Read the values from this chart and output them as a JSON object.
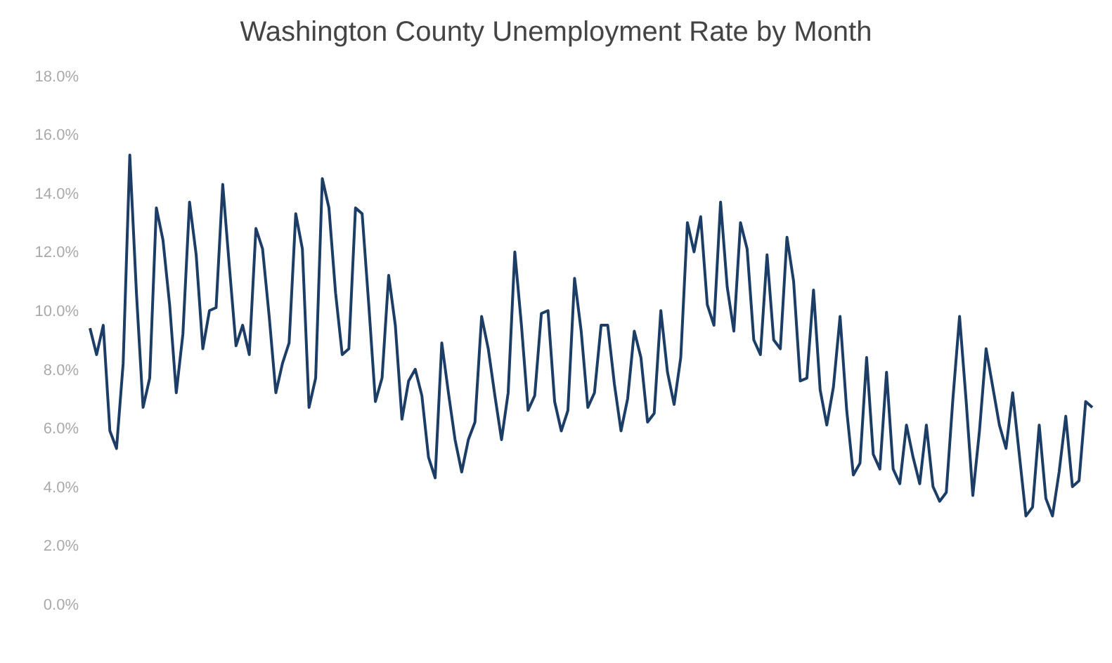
{
  "chart_data": {
    "type": "line",
    "title": "Washington County Unemployment Rate by Month",
    "categories": [
      null,
      null,
      null,
      null,
      null,
      null,
      null,
      null,
      null,
      null,
      null,
      null,
      null,
      null,
      null,
      null,
      null,
      null,
      null,
      null,
      null,
      null,
      null,
      null,
      null,
      null,
      null,
      null,
      null,
      null,
      null,
      null,
      null,
      null,
      null,
      null,
      null,
      null,
      null,
      null,
      null,
      null,
      null,
      null,
      null,
      null,
      null,
      null,
      null,
      null,
      null,
      null,
      null,
      null,
      null,
      null,
      null,
      null,
      null,
      null,
      null,
      null,
      null,
      null,
      null,
      null,
      null,
      null,
      null,
      null,
      null,
      null,
      null,
      null,
      null,
      null,
      null,
      null,
      null,
      null,
      null,
      null,
      null,
      null,
      null,
      null,
      null,
      null,
      null,
      null,
      null,
      null,
      null,
      null,
      null,
      null,
      null,
      null,
      null,
      null,
      null,
      null,
      null,
      null,
      null,
      null,
      null,
      null,
      null,
      null,
      null,
      null,
      null,
      null,
      null,
      null,
      null,
      null,
      null,
      null,
      null,
      null,
      null,
      null,
      null,
      null,
      null,
      null,
      null,
      null,
      null,
      null,
      null,
      null,
      null,
      null,
      null,
      null,
      null,
      null,
      null,
      null,
      null,
      null,
      null,
      null,
      null,
      null,
      null,
      null,
      null,
      null
    ],
    "series": [
      {
        "color": "#1b3d66",
        "values": [
          9.4,
          8.5,
          9.5,
          5.9,
          5.3,
          8.2,
          15.3,
          10.6,
          6.7,
          7.7,
          13.5,
          12.4,
          10.2,
          7.2,
          9.2,
          13.7,
          11.9,
          8.7,
          10.0,
          10.1,
          14.3,
          11.5,
          8.8,
          9.5,
          8.5,
          12.8,
          12.1,
          9.8,
          7.2,
          8.2,
          8.9,
          13.3,
          12.1,
          6.7,
          7.7,
          14.5,
          13.5,
          10.6,
          8.5,
          8.7,
          13.5,
          13.3,
          10.2,
          6.9,
          7.7,
          11.2,
          9.5,
          6.3,
          7.6,
          8.0,
          7.1,
          5.0,
          4.3,
          8.9,
          7.2,
          5.6,
          4.5,
          5.6,
          6.2,
          9.8,
          8.7,
          7.1,
          5.6,
          7.2,
          12.0,
          9.5,
          6.6,
          7.1,
          9.9,
          10.0,
          6.9,
          5.9,
          6.6,
          11.1,
          9.3,
          6.7,
          7.2,
          9.5,
          9.5,
          7.5,
          5.9,
          7.0,
          9.3,
          8.4,
          6.2,
          6.5,
          10.0,
          7.9,
          6.8,
          8.4,
          13.0,
          12.0,
          13.2,
          10.2,
          9.5,
          13.7,
          10.8,
          9.3,
          13.0,
          12.1,
          9.0,
          8.5,
          11.9,
          9.0,
          8.7,
          12.5,
          11.0,
          7.6,
          7.7,
          10.7,
          7.3,
          6.1,
          7.4,
          9.8,
          6.6,
          4.4,
          4.8,
          8.4,
          5.1,
          4.6,
          7.9,
          4.6,
          4.1,
          6.1,
          5.0,
          4.1,
          6.1,
          4.0,
          3.5,
          3.8,
          7.0,
          9.8,
          6.9,
          3.7,
          5.9,
          8.7,
          7.4,
          6.1,
          5.3,
          7.2,
          5.1,
          3.0,
          3.3,
          6.1,
          3.6,
          3.0,
          4.5,
          6.4,
          4.0,
          4.2,
          6.9,
          6.7
        ]
      }
    ],
    "ylim": [
      0,
      18
    ],
    "yticks": [
      {
        "value": 0,
        "label": "0.0%"
      },
      {
        "value": 2,
        "label": "2.0%"
      },
      {
        "value": 4,
        "label": "4.0%"
      },
      {
        "value": 6,
        "label": "6.0%"
      },
      {
        "value": 8,
        "label": "8.0%"
      },
      {
        "value": 10,
        "label": "10.0%"
      },
      {
        "value": 12,
        "label": "12.0%"
      },
      {
        "value": 14,
        "label": "14.0%"
      },
      {
        "value": 16,
        "label": "16.0%"
      },
      {
        "value": 18,
        "label": "18.0%"
      }
    ]
  }
}
